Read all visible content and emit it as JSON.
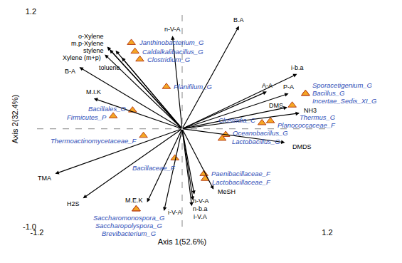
{
  "chart_data": {
    "type": "biplot",
    "xlabel": "Axis 1(52.6%)",
    "ylabel": "Axis 2(32.4%)",
    "xlim": [
      -1.2,
      1.2
    ],
    "ylim": [
      -1.0,
      1.2
    ],
    "xticks": [
      -1.2,
      1.2
    ],
    "yticks": [
      {
        "value": -1.0,
        "label": "-1.0"
      },
      1.2
    ],
    "origin": [
      0,
      0
    ],
    "series": [
      {
        "type": "vector",
        "color": "#000000",
        "values": [
          {
            "label": "B.A",
            "x": 0.47,
            "y": 1.05
          },
          {
            "label": "n-V-A",
            "x": -0.08,
            "y": 0.95
          },
          {
            "label": "o-Xylene",
            "x": -0.62,
            "y": 0.84
          },
          {
            "label": "m.p-Xylene",
            "x": -0.6,
            "y": 0.81
          },
          {
            "label": "stylene",
            "x": -0.55,
            "y": 0.8
          },
          {
            "label": "Xylene (m+p)",
            "x": -0.64,
            "y": 0.76
          },
          {
            "label": "toluene",
            "x": -0.5,
            "y": 0.73
          },
          {
            "label": "B-A",
            "x": -0.85,
            "y": 0.63
          },
          {
            "label": "M.I.K",
            "x": -0.73,
            "y": 0.31
          },
          {
            "label": "TMA",
            "x": -1.05,
            "y": -0.46
          },
          {
            "label": "H2S",
            "x": -0.82,
            "y": -0.71
          },
          {
            "label": "M.E.K",
            "x": -0.29,
            "y": -0.75
          },
          {
            "label": "i-V-A",
            "x": -0.15,
            "y": -0.84
          },
          {
            "label": "MeSH",
            "x": 0.26,
            "y": -0.62
          },
          {
            "label": "n-V-A",
            "x": 0.1,
            "y": -0.67
          },
          {
            "label": "n-b.a",
            "x": 0.09,
            "y": -0.73
          },
          {
            "label": "i-V.A",
            "x": 0.08,
            "y": -0.79
          },
          {
            "label": "A-A",
            "x": 0.7,
            "y": 0.38
          },
          {
            "label": "i-b.a",
            "x": 0.95,
            "y": 0.56
          },
          {
            "label": "P-A",
            "x": 0.88,
            "y": 0.36
          },
          {
            "label": "DMS",
            "x": 0.87,
            "y": 0.22
          },
          {
            "label": "NH3",
            "x": 0.97,
            "y": 0.16
          },
          {
            "label": "DMDS",
            "x": 0.85,
            "y": -0.14
          }
        ]
      },
      {
        "type": "scatter",
        "marker": "triangle",
        "color": "#f5a623",
        "label_color": "#2f4fb8",
        "values": [
          {
            "label": "Janthinobacterium_G",
            "x": -0.42,
            "y": 0.88
          },
          {
            "label": "Caldalkalibacillus_G",
            "x": -0.39,
            "y": 0.79
          },
          {
            "label": "Clostridium_G",
            "x": -0.35,
            "y": 0.71
          },
          {
            "label": "Planifilum_G",
            "x": -0.13,
            "y": 0.43
          },
          {
            "label": "Bacillales_O",
            "x": -0.41,
            "y": 0.19
          },
          {
            "label": "Firmicutes_P",
            "x": -0.57,
            "y": 0.13
          },
          {
            "label": "Thermoactinomycetaceae_F",
            "x": -0.32,
            "y": -0.07
          },
          {
            "label": "Bacillaceae_F",
            "x": -0.06,
            "y": -0.3
          },
          {
            "label": "Saccharomonospora_G",
            "x": -0.38,
            "y": -0.82
          },
          {
            "label": "Saccharopolyspora_G",
            "x": -0.38,
            "y": -0.82
          },
          {
            "label": "Brevibacterium_G",
            "x": -0.38,
            "y": -0.82
          },
          {
            "label": "Paenibacillaceae_F",
            "x": 0.18,
            "y": -0.46
          },
          {
            "label": "Lactobacillaceae_F",
            "x": 0.19,
            "y": -0.51
          },
          {
            "label": "Oceanobacillus_G",
            "x": 0.36,
            "y": -0.06
          },
          {
            "label": "Lactobacillus_G",
            "x": 0.33,
            "y": -0.1
          },
          {
            "label": "Clostridia_C",
            "x": 0.66,
            "y": 0.06
          },
          {
            "label": "Planococcaceae_F",
            "x": 0.73,
            "y": 0.08
          },
          {
            "label": "Thermus_G",
            "x": 0.91,
            "y": 0.24
          },
          {
            "label": "Sporacetigenium_G",
            "x": 1.02,
            "y": 0.36
          },
          {
            "label": "Bacillus_G",
            "x": 1.02,
            "y": 0.36
          },
          {
            "label": "Incertae_Sedis_XI_G",
            "x": 1.02,
            "y": 0.36
          }
        ]
      }
    ]
  }
}
